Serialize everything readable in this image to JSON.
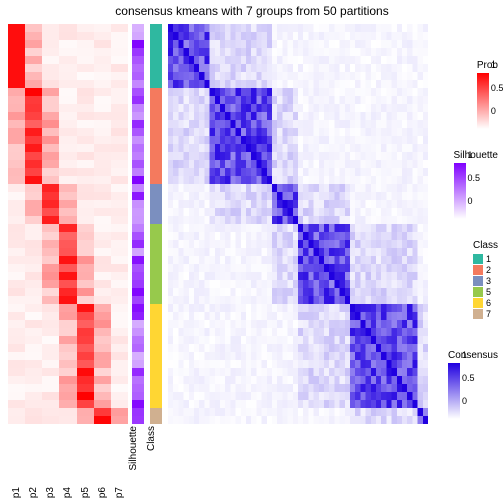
{
  "title": "consensus kmeans with 7 groups from 50 partitions",
  "colors": {
    "prob_gradient": [
      "#ffffff",
      "#ff0000"
    ],
    "silhouette_gradient": [
      "#ffffff",
      "#8000ff"
    ],
    "consensus_gradient": [
      "#ffffff",
      "#2000e0"
    ],
    "class_palette": {
      "1": "#2fb8a0",
      "2": "#f47a5e",
      "3": "#7b8fbf",
      "5": "#97c94c",
      "6": "#ffd633",
      "7": "#d0b090"
    }
  },
  "annotation_columns": [
    "p1",
    "p2",
    "p3",
    "p4",
    "p5",
    "p6",
    "p7"
  ],
  "side_columns": [
    "Silhouette",
    "Class"
  ],
  "class_groups": [
    {
      "class": "1",
      "size": 8
    },
    {
      "class": "2",
      "size": 12
    },
    {
      "class": "3",
      "size": 5
    },
    {
      "class": "5",
      "size": 10
    },
    {
      "class": "6",
      "size": 13
    },
    {
      "class": "7",
      "size": 2
    }
  ],
  "n_samples": 50,
  "prob_matrix_seed": 11,
  "silhouette_values_seed": 7,
  "legends": {
    "prob": {
      "title": "Prob",
      "ticks": [
        "1",
        "0.5",
        "0"
      ]
    },
    "sil": {
      "title": "Silhouette",
      "ticks": [
        "1",
        "0.5",
        "0"
      ]
    },
    "class": {
      "title": "Class",
      "items": [
        "1",
        "2",
        "3",
        "5",
        "6",
        "7"
      ]
    },
    "cons": {
      "title": "Consensus",
      "ticks": [
        "1",
        "0.5",
        "0"
      ]
    }
  }
}
